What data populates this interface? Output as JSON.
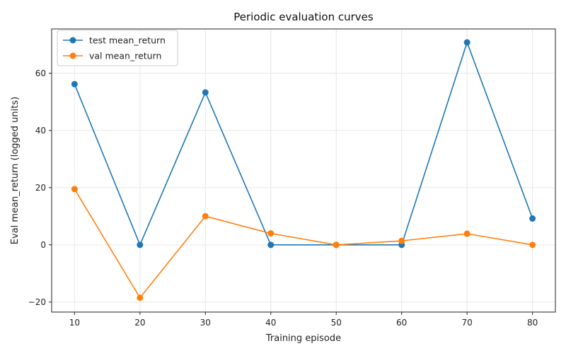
{
  "chart_data": {
    "type": "line",
    "title": "Periodic evaluation curves",
    "xlabel": "Training episode",
    "ylabel": "Eval mean_return (logged units)",
    "x": [
      10,
      20,
      30,
      40,
      50,
      60,
      70,
      80
    ],
    "xlim": [
      6.5,
      83.5
    ],
    "ylim": [
      -23.5,
      75.5
    ],
    "xticks": [
      10,
      20,
      30,
      40,
      50,
      60,
      70,
      80
    ],
    "yticks": [
      -20,
      0,
      20,
      40,
      60
    ],
    "ytick_labels": [
      "−20",
      "0",
      "20",
      "40",
      "60"
    ],
    "grid": true,
    "legend_position": "top-left",
    "series": [
      {
        "name": "test mean_return",
        "color": "#1f77b4",
        "values": [
          56.2,
          0.0,
          53.3,
          0.0,
          0.0,
          0.0,
          70.8,
          9.2
        ]
      },
      {
        "name": "val mean_return",
        "color": "#ff7f0e",
        "values": [
          19.5,
          -18.5,
          10.0,
          4.0,
          0.0,
          1.4,
          3.9,
          0.0
        ]
      }
    ]
  }
}
